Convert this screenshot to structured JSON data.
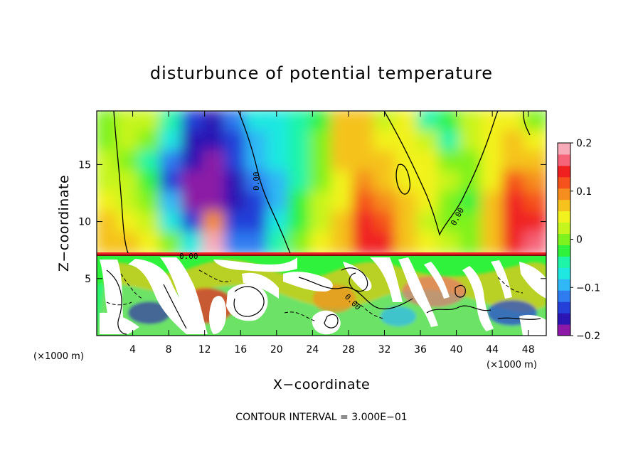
{
  "chart_data": {
    "type": "heatmap",
    "title": "disturbunce of potential temperature",
    "xlabel": "X−coordinate",
    "ylabel": "Z−coordinate",
    "x_unit": "(×1000 m)",
    "y_unit": "(×1000 m)",
    "xlim": [
      0,
      50
    ],
    "ylim": [
      0,
      19.7
    ],
    "x_ticks": [
      4,
      8,
      12,
      16,
      20,
      24,
      28,
      32,
      36,
      40,
      44,
      48
    ],
    "y_ticks": [
      5,
      10,
      15
    ],
    "colorbar": {
      "range": [
        -0.2,
        0.2
      ],
      "ticks": [
        0.2,
        0.1,
        0,
        -0.1,
        -0.2
      ],
      "tick_labels": [
        "0.2",
        "0.1",
        "0",
        "−0.1",
        "−0.2"
      ],
      "colors": [
        "#8c1aa6",
        "#2b16b4",
        "#2440d8",
        "#2f7cf0",
        "#2fb8f5",
        "#1ee8e0",
        "#1ef5a8",
        "#2ef23c",
        "#7ef21e",
        "#c6f51e",
        "#f2f21e",
        "#f5c21e",
        "#f58e1e",
        "#f5521e",
        "#f02020",
        "#f56478",
        "#f7aab8"
      ]
    },
    "contour_labels": [
      "0.00",
      "0.00",
      "0.00",
      "0.00"
    ],
    "contour_interval_text": "CONTOUR INTERVAL = 3.000E−01",
    "inversion_height": 7.2,
    "upper_field": [
      [
        0.01,
        0.03,
        0.02,
        -0.05,
        -0.13,
        -0.16,
        -0.12,
        -0.07,
        -0.06,
        -0.04,
        -0.02,
        0.07,
        0.06,
        0.02,
        0.04,
        -0.04,
        -0.02,
        0.03,
        0.05,
        0.04,
        0.01
      ],
      [
        0.01,
        0.02,
        0.0,
        -0.08,
        -0.16,
        -0.17,
        -0.13,
        -0.09,
        -0.07,
        -0.05,
        -0.01,
        0.07,
        0.07,
        0.05,
        0.04,
        0.02,
        -0.05,
        0.02,
        0.05,
        0.07,
        0.05
      ],
      [
        0.02,
        0.01,
        -0.04,
        -0.12,
        -0.17,
        -0.18,
        -0.15,
        -0.1,
        -0.08,
        -0.05,
        0.0,
        0.06,
        0.08,
        0.06,
        0.05,
        0.04,
        0.0,
        0.01,
        0.05,
        0.08,
        0.07
      ],
      [
        0.03,
        0.02,
        -0.02,
        -0.13,
        -0.19,
        -0.2,
        -0.16,
        -0.12,
        -0.09,
        -0.04,
        0.01,
        0.05,
        0.09,
        0.07,
        0.05,
        0.04,
        0.02,
        -0.01,
        0.05,
        0.11,
        0.09
      ],
      [
        0.04,
        0.03,
        0.0,
        -0.1,
        -0.18,
        -0.21,
        -0.17,
        -0.13,
        -0.09,
        -0.03,
        0.02,
        0.05,
        0.11,
        0.09,
        0.06,
        0.04,
        0.01,
        -0.02,
        0.06,
        0.13,
        0.12
      ],
      [
        0.06,
        0.04,
        0.02,
        -0.06,
        -0.14,
        0.1,
        -0.15,
        -0.14,
        -0.07,
        -0.02,
        0.03,
        0.06,
        0.13,
        0.12,
        0.06,
        0.03,
        0.0,
        0.0,
        0.07,
        0.15,
        0.15
      ],
      [
        0.08,
        0.06,
        0.04,
        0.0,
        -0.08,
        0.2,
        -0.12,
        -0.11,
        -0.05,
        0.0,
        0.04,
        0.07,
        0.14,
        0.13,
        0.06,
        0.04,
        0.02,
        0.01,
        0.07,
        0.15,
        0.16
      ]
    ]
  },
  "colors": {
    "background": "#ffffff",
    "contour": "#000000"
  }
}
